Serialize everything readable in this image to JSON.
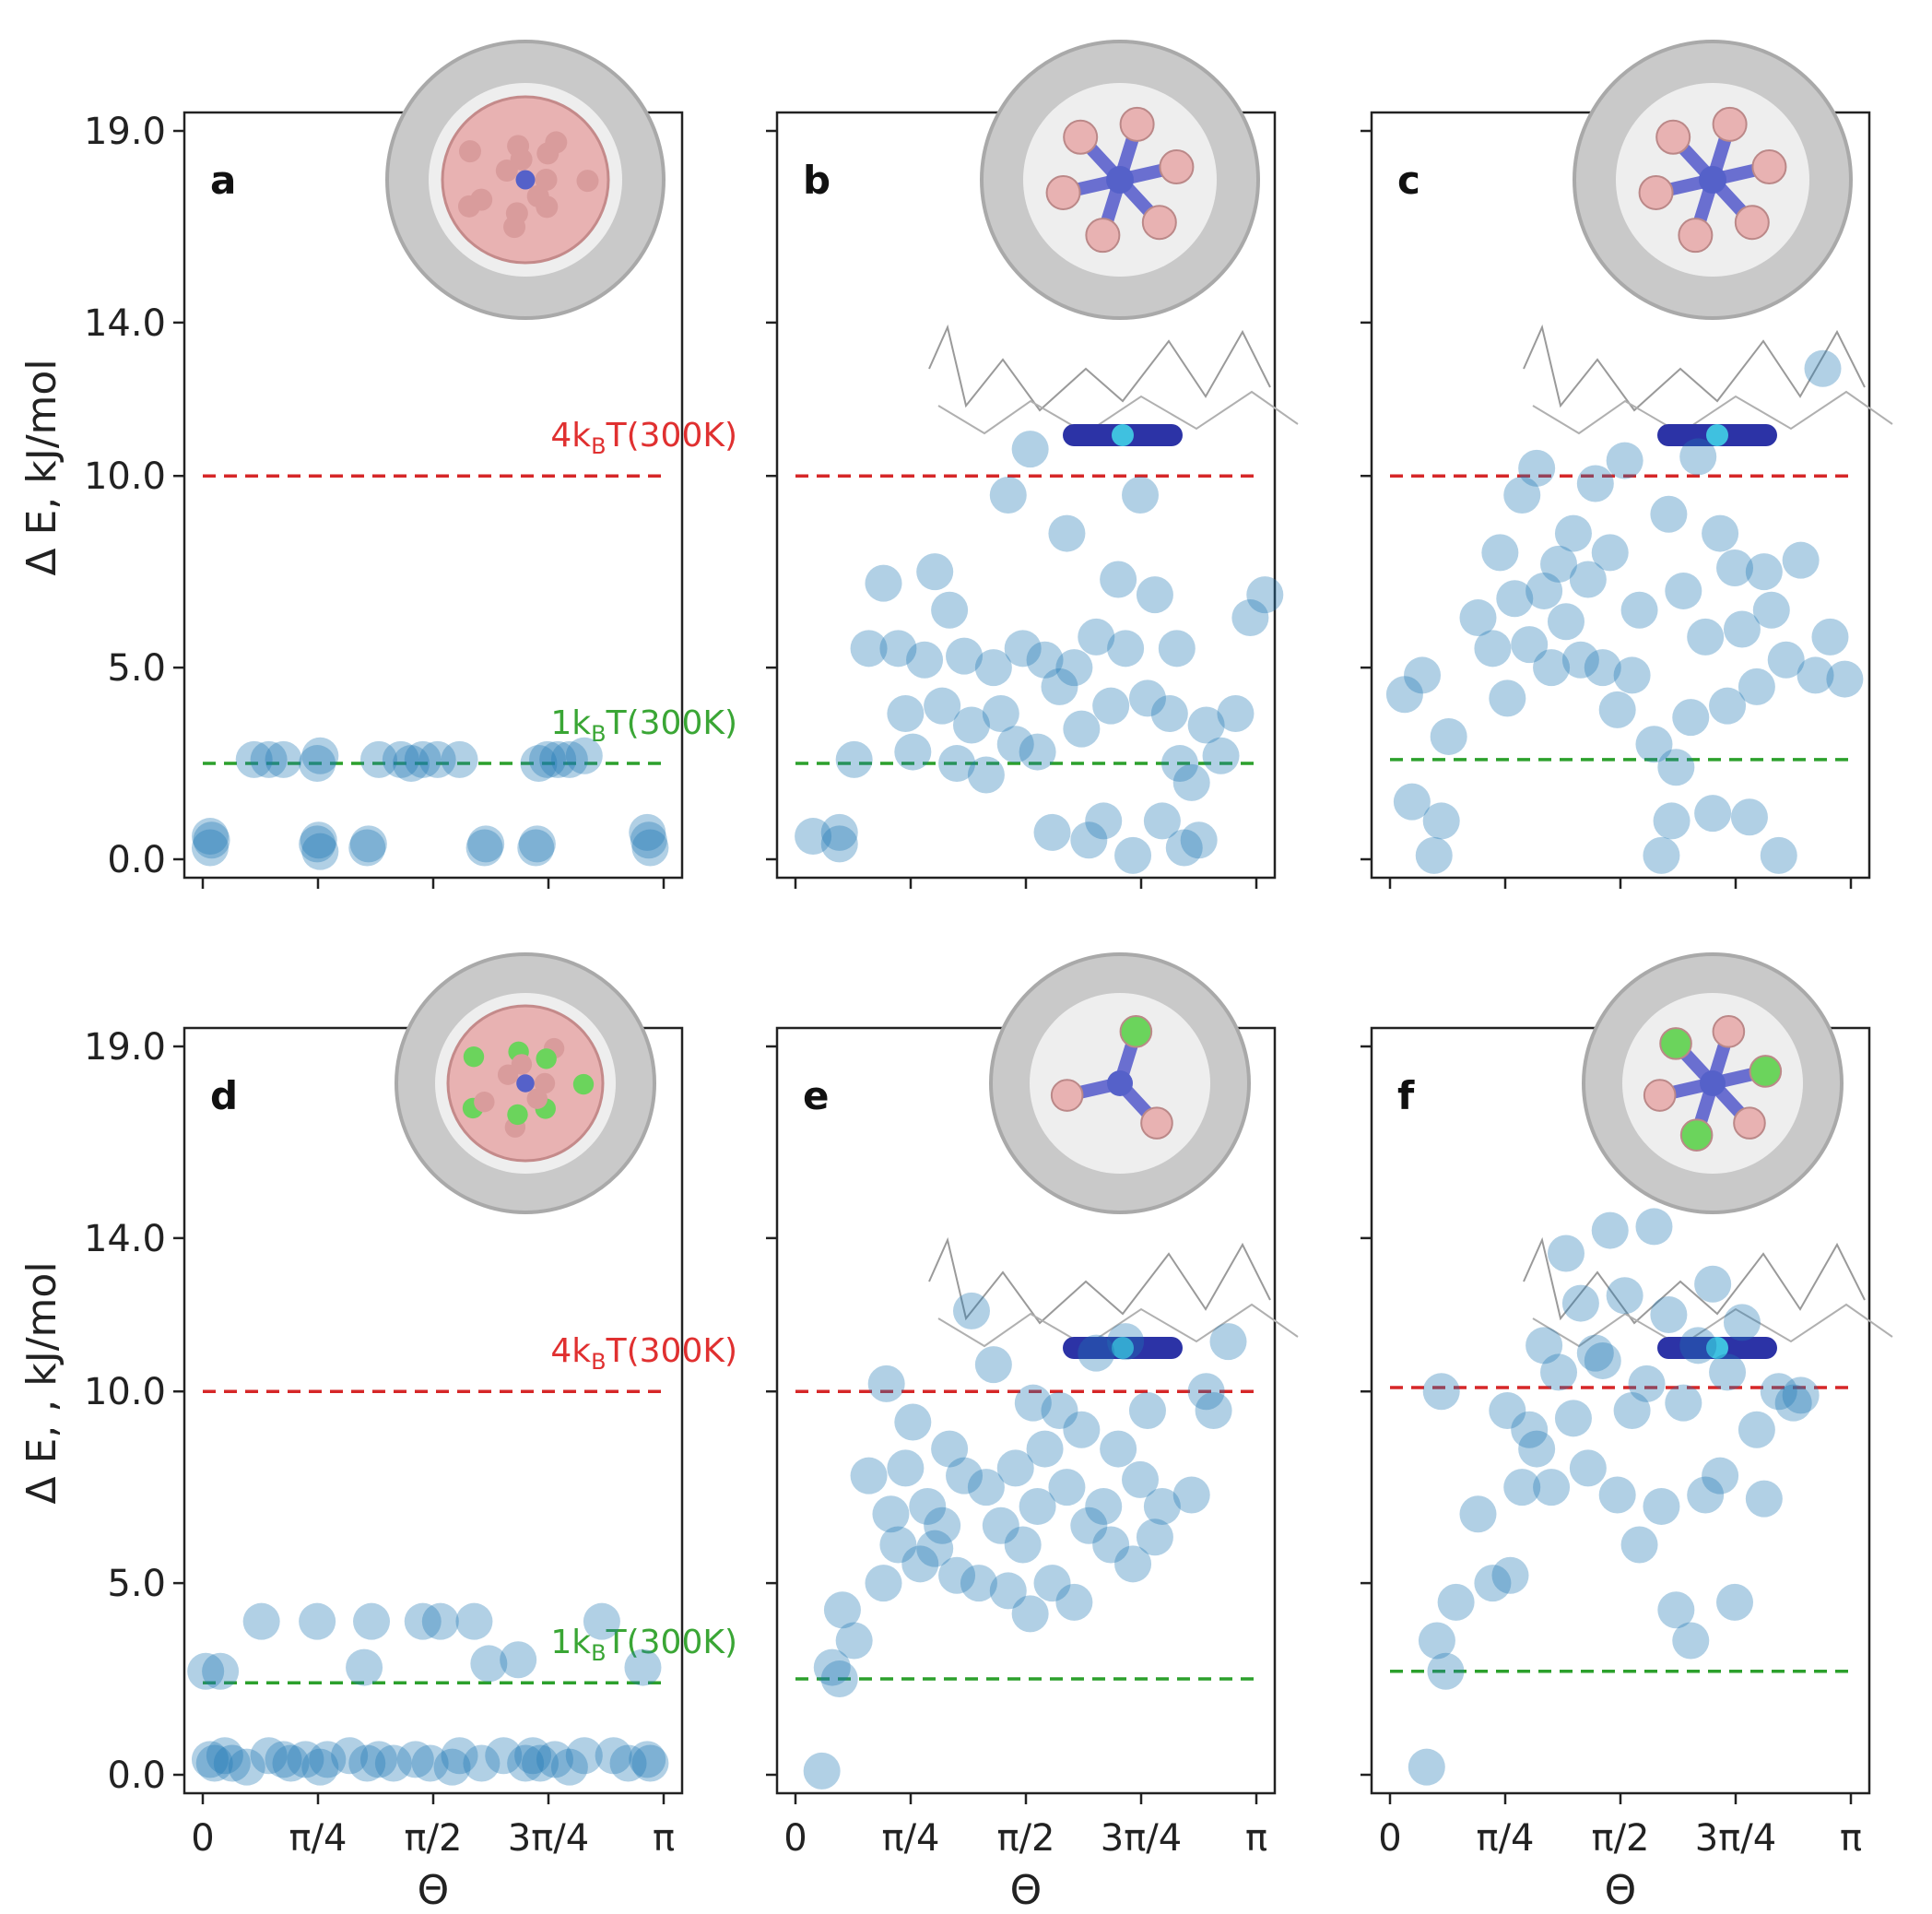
{
  "figure": {
    "x_ticks": [
      "0",
      "π/4",
      "π/2",
      "3π/4",
      "π"
    ],
    "x_label": "Θ",
    "y_ticks": [
      "0.0",
      "5.0",
      "10.0",
      "14.0",
      "19.0"
    ],
    "y_labels": [
      "Δ E, kJ/mol",
      "Δ E, , kJ/mol"
    ],
    "colors": {
      "marker": "#1f77b4",
      "line_4kT": "#d62728",
      "line_1kT": "#2ca02c",
      "label_4kT": "#e03030",
      "label_1kT": "#3aa635"
    }
  },
  "chart_data": [
    {
      "type": "scatter",
      "panel": "a",
      "xlim": [
        0,
        3.14159
      ],
      "ylim": [
        0,
        19
      ],
      "x_unit": "rad",
      "ref_lines": [
        {
          "label_base": "4k",
          "label_sub": "B",
          "label_rest": "T(300K)",
          "value": 10.0,
          "color": "#d62728"
        },
        {
          "label_base": "1k",
          "label_sub": "B",
          "label_rest": "T(300K)",
          "value": 2.5,
          "color": "#2ca02c"
        }
      ],
      "points": [
        [
          0.05,
          0.6
        ],
        [
          0.05,
          0.3
        ],
        [
          0.06,
          0.5
        ],
        [
          0.35,
          2.6
        ],
        [
          0.45,
          2.6
        ],
        [
          0.55,
          2.6
        ],
        [
          0.78,
          2.5
        ],
        [
          0.8,
          2.7
        ],
        [
          0.79,
          0.5
        ],
        [
          0.8,
          0.2
        ],
        [
          0.78,
          0.4
        ],
        [
          1.13,
          0.4
        ],
        [
          1.12,
          0.3
        ],
        [
          1.2,
          2.6
        ],
        [
          1.35,
          2.6
        ],
        [
          1.42,
          2.5
        ],
        [
          1.5,
          2.6
        ],
        [
          1.6,
          2.6
        ],
        [
          1.75,
          2.6
        ],
        [
          1.93,
          0.4
        ],
        [
          1.92,
          0.3
        ],
        [
          2.28,
          0.4
        ],
        [
          2.27,
          0.3
        ],
        [
          2.29,
          2.5
        ],
        [
          2.35,
          2.6
        ],
        [
          2.42,
          2.6
        ],
        [
          2.5,
          2.6
        ],
        [
          2.6,
          2.7
        ],
        [
          3.04,
          0.5
        ],
        [
          3.05,
          0.3
        ],
        [
          3.03,
          0.7
        ]
      ]
    },
    {
      "type": "scatter",
      "panel": "b",
      "xlim": [
        0,
        3.14159
      ],
      "ylim": [
        0,
        19
      ],
      "x_unit": "rad",
      "ref_lines": [
        {
          "value": 10.0,
          "color": "#d62728"
        },
        {
          "value": 2.5,
          "color": "#2ca02c"
        }
      ],
      "points": [
        [
          0.12,
          0.6
        ],
        [
          0.3,
          0.7
        ],
        [
          0.3,
          0.4
        ],
        [
          0.4,
          2.6
        ],
        [
          0.5,
          5.5
        ],
        [
          0.6,
          7.2
        ],
        [
          0.7,
          5.5
        ],
        [
          0.75,
          3.8
        ],
        [
          0.8,
          2.8
        ],
        [
          0.88,
          5.2
        ],
        [
          0.95,
          7.5
        ],
        [
          1.0,
          4.0
        ],
        [
          1.05,
          6.5
        ],
        [
          1.1,
          2.5
        ],
        [
          1.15,
          5.3
        ],
        [
          1.2,
          3.5
        ],
        [
          1.3,
          2.2
        ],
        [
          1.35,
          5.0
        ],
        [
          1.4,
          3.8
        ],
        [
          1.45,
          9.5
        ],
        [
          1.5,
          3.0
        ],
        [
          1.55,
          5.5
        ],
        [
          1.6,
          10.7
        ],
        [
          1.65,
          2.8
        ],
        [
          1.7,
          5.2
        ],
        [
          1.75,
          0.7
        ],
        [
          1.8,
          4.5
        ],
        [
          1.85,
          8.5
        ],
        [
          1.9,
          5.0
        ],
        [
          1.95,
          3.4
        ],
        [
          2.0,
          0.5
        ],
        [
          2.05,
          5.8
        ],
        [
          2.1,
          1.0
        ],
        [
          2.15,
          4.0
        ],
        [
          2.2,
          7.3
        ],
        [
          2.25,
          5.5
        ],
        [
          2.3,
          0.1
        ],
        [
          2.35,
          9.5
        ],
        [
          2.4,
          4.2
        ],
        [
          2.45,
          6.9
        ],
        [
          2.5,
          1.0
        ],
        [
          2.55,
          3.8
        ],
        [
          2.6,
          5.5
        ],
        [
          2.62,
          2.5
        ],
        [
          2.65,
          0.3
        ],
        [
          2.7,
          2.0
        ],
        [
          2.75,
          0.5
        ],
        [
          2.8,
          3.5
        ],
        [
          2.9,
          2.7
        ],
        [
          3.0,
          3.8
        ],
        [
          3.1,
          6.3
        ],
        [
          3.2,
          6.9
        ]
      ]
    },
    {
      "type": "scatter",
      "panel": "c",
      "xlim": [
        0,
        3.14159
      ],
      "ylim": [
        0,
        19
      ],
      "x_unit": "rad",
      "ref_lines": [
        {
          "value": 10.0,
          "color": "#d62728"
        },
        {
          "value": 2.6,
          "color": "#2ca02c"
        }
      ],
      "points": [
        [
          0.1,
          4.3
        ],
        [
          0.15,
          1.5
        ],
        [
          0.22,
          4.8
        ],
        [
          0.3,
          0.1
        ],
        [
          0.35,
          1.0
        ],
        [
          0.4,
          3.2
        ],
        [
          0.6,
          6.3
        ],
        [
          0.7,
          5.5
        ],
        [
          0.75,
          8.0
        ],
        [
          0.8,
          4.2
        ],
        [
          0.85,
          6.8
        ],
        [
          0.9,
          9.5
        ],
        [
          0.95,
          5.6
        ],
        [
          1.0,
          10.2
        ],
        [
          1.05,
          7.0
        ],
        [
          1.1,
          5.0
        ],
        [
          1.15,
          7.7
        ],
        [
          1.2,
          6.2
        ],
        [
          1.25,
          8.5
        ],
        [
          1.3,
          5.2
        ],
        [
          1.35,
          7.3
        ],
        [
          1.4,
          9.8
        ],
        [
          1.45,
          5.0
        ],
        [
          1.5,
          8.0
        ],
        [
          1.55,
          3.9
        ],
        [
          1.6,
          10.4
        ],
        [
          1.65,
          4.8
        ],
        [
          1.7,
          6.5
        ],
        [
          1.8,
          3.0
        ],
        [
          1.85,
          0.1
        ],
        [
          1.9,
          9.0
        ],
        [
          1.92,
          1.0
        ],
        [
          1.95,
          2.4
        ],
        [
          2.0,
          7.0
        ],
        [
          2.05,
          3.7
        ],
        [
          2.1,
          10.5
        ],
        [
          2.15,
          5.8
        ],
        [
          2.2,
          1.2
        ],
        [
          2.25,
          8.5
        ],
        [
          2.3,
          4.0
        ],
        [
          2.35,
          7.6
        ],
        [
          2.4,
          6.0
        ],
        [
          2.45,
          1.1
        ],
        [
          2.5,
          4.5
        ],
        [
          2.55,
          7.5
        ],
        [
          2.6,
          6.5
        ],
        [
          2.65,
          0.1
        ],
        [
          2.7,
          5.2
        ],
        [
          2.8,
          7.8
        ],
        [
          2.9,
          4.8
        ],
        [
          2.95,
          12.8
        ],
        [
          3.0,
          5.8
        ],
        [
          3.1,
          4.7
        ]
      ]
    },
    {
      "type": "scatter",
      "panel": "d",
      "xlim": [
        0,
        3.14159
      ],
      "ylim": [
        0,
        19
      ],
      "x_unit": "rad",
      "ref_lines": [
        {
          "label_base": "4k",
          "label_sub": "B",
          "label_rest": "T(300K)",
          "value": 10.0,
          "color": "#d62728"
        },
        {
          "label_base": "1k",
          "label_sub": "B",
          "label_rest": "T(300K)",
          "value": 2.4,
          "color": "#2ca02c"
        }
      ],
      "points": [
        [
          0.02,
          2.7
        ],
        [
          0.05,
          0.4
        ],
        [
          0.08,
          0.3
        ],
        [
          0.12,
          2.7
        ],
        [
          0.15,
          0.5
        ],
        [
          0.2,
          0.3
        ],
        [
          0.3,
          0.2
        ],
        [
          0.4,
          4.0
        ],
        [
          0.45,
          0.5
        ],
        [
          0.55,
          0.4
        ],
        [
          0.6,
          0.3
        ],
        [
          0.7,
          0.4
        ],
        [
          0.78,
          4.0
        ],
        [
          0.8,
          0.2
        ],
        [
          0.85,
          0.4
        ],
        [
          1.0,
          0.5
        ],
        [
          1.1,
          2.8
        ],
        [
          1.12,
          0.3
        ],
        [
          1.15,
          4.0
        ],
        [
          1.2,
          0.4
        ],
        [
          1.3,
          0.3
        ],
        [
          1.45,
          0.4
        ],
        [
          1.5,
          4.0
        ],
        [
          1.55,
          0.3
        ],
        [
          1.62,
          4.0
        ],
        [
          1.7,
          0.2
        ],
        [
          1.75,
          0.5
        ],
        [
          1.85,
          4.0
        ],
        [
          1.9,
          0.3
        ],
        [
          1.95,
          2.9
        ],
        [
          2.05,
          0.5
        ],
        [
          2.15,
          3.0
        ],
        [
          2.2,
          0.3
        ],
        [
          2.25,
          0.5
        ],
        [
          2.3,
          0.3
        ],
        [
          2.4,
          0.4
        ],
        [
          2.5,
          0.2
        ],
        [
          2.6,
          0.5
        ],
        [
          2.72,
          4.0
        ],
        [
          2.8,
          0.5
        ],
        [
          2.9,
          0.3
        ],
        [
          3.0,
          2.8
        ],
        [
          3.03,
          0.4
        ],
        [
          3.05,
          0.3
        ]
      ]
    },
    {
      "type": "scatter",
      "panel": "e",
      "xlim": [
        0,
        3.14159
      ],
      "ylim": [
        0,
        19
      ],
      "x_unit": "rad",
      "ref_lines": [
        {
          "value": 10.0,
          "color": "#d62728"
        },
        {
          "value": 2.5,
          "color": "#2ca02c"
        }
      ],
      "points": [
        [
          0.18,
          0.1
        ],
        [
          0.25,
          2.8
        ],
        [
          0.3,
          2.5
        ],
        [
          0.32,
          4.3
        ],
        [
          0.4,
          3.5
        ],
        [
          0.5,
          7.8
        ],
        [
          0.6,
          5.0
        ],
        [
          0.62,
          10.2
        ],
        [
          0.65,
          6.8
        ],
        [
          0.7,
          6.0
        ],
        [
          0.75,
          8.0
        ],
        [
          0.8,
          9.2
        ],
        [
          0.85,
          5.5
        ],
        [
          0.9,
          7.0
        ],
        [
          0.95,
          5.9
        ],
        [
          1.0,
          6.5
        ],
        [
          1.05,
          8.5
        ],
        [
          1.1,
          5.2
        ],
        [
          1.15,
          7.8
        ],
        [
          1.2,
          12.1
        ],
        [
          1.25,
          5.0
        ],
        [
          1.3,
          7.5
        ],
        [
          1.35,
          10.7
        ],
        [
          1.4,
          6.5
        ],
        [
          1.45,
          4.8
        ],
        [
          1.5,
          8.0
        ],
        [
          1.55,
          6.0
        ],
        [
          1.6,
          4.2
        ],
        [
          1.62,
          9.7
        ],
        [
          1.65,
          7.0
        ],
        [
          1.7,
          8.5
        ],
        [
          1.75,
          5.0
        ],
        [
          1.8,
          9.5
        ],
        [
          1.85,
          7.5
        ],
        [
          1.9,
          4.5
        ],
        [
          1.95,
          9.0
        ],
        [
          2.0,
          6.5
        ],
        [
          2.05,
          11.0
        ],
        [
          2.1,
          7.0
        ],
        [
          2.15,
          6.0
        ],
        [
          2.2,
          8.5
        ],
        [
          2.25,
          11.3
        ],
        [
          2.3,
          5.5
        ],
        [
          2.35,
          7.7
        ],
        [
          2.4,
          9.5
        ],
        [
          2.45,
          6.2
        ],
        [
          2.5,
          7.0
        ],
        [
          2.7,
          7.3
        ],
        [
          2.8,
          10.0
        ],
        [
          2.85,
          9.5
        ],
        [
          2.95,
          11.3
        ]
      ]
    },
    {
      "type": "scatter",
      "panel": "f",
      "xlim": [
        0,
        3.14159
      ],
      "ylim": [
        0,
        19
      ],
      "x_unit": "rad",
      "ref_lines": [
        {
          "value": 10.1,
          "color": "#d62728"
        },
        {
          "value": 2.7,
          "color": "#2ca02c"
        }
      ],
      "points": [
        [
          0.25,
          0.2
        ],
        [
          0.32,
          3.5
        ],
        [
          0.35,
          10.0
        ],
        [
          0.38,
          2.7
        ],
        [
          0.45,
          4.5
        ],
        [
          0.6,
          6.8
        ],
        [
          0.7,
          5.0
        ],
        [
          0.8,
          9.5
        ],
        [
          0.82,
          5.2
        ],
        [
          0.9,
          7.5
        ],
        [
          0.95,
          9.0
        ],
        [
          1.0,
          8.5
        ],
        [
          1.05,
          11.2
        ],
        [
          1.1,
          7.5
        ],
        [
          1.15,
          10.5
        ],
        [
          1.2,
          13.6
        ],
        [
          1.25,
          9.3
        ],
        [
          1.3,
          12.3
        ],
        [
          1.35,
          8.0
        ],
        [
          1.4,
          11.0
        ],
        [
          1.45,
          10.8
        ],
        [
          1.5,
          14.2
        ],
        [
          1.55,
          7.3
        ],
        [
          1.6,
          12.5
        ],
        [
          1.65,
          9.5
        ],
        [
          1.7,
          6.0
        ],
        [
          1.75,
          10.2
        ],
        [
          1.8,
          14.3
        ],
        [
          1.85,
          7.0
        ],
        [
          1.9,
          12.0
        ],
        [
          1.95,
          4.3
        ],
        [
          2.0,
          9.7
        ],
        [
          2.05,
          3.5
        ],
        [
          2.1,
          11.2
        ],
        [
          2.15,
          7.3
        ],
        [
          2.2,
          12.8
        ],
        [
          2.25,
          7.8
        ],
        [
          2.3,
          10.5
        ],
        [
          2.35,
          4.5
        ],
        [
          2.4,
          11.8
        ],
        [
          2.5,
          9.0
        ],
        [
          2.55,
          7.2
        ],
        [
          2.65,
          10.0
        ],
        [
          2.75,
          9.7
        ],
        [
          2.8,
          9.9
        ]
      ]
    }
  ]
}
